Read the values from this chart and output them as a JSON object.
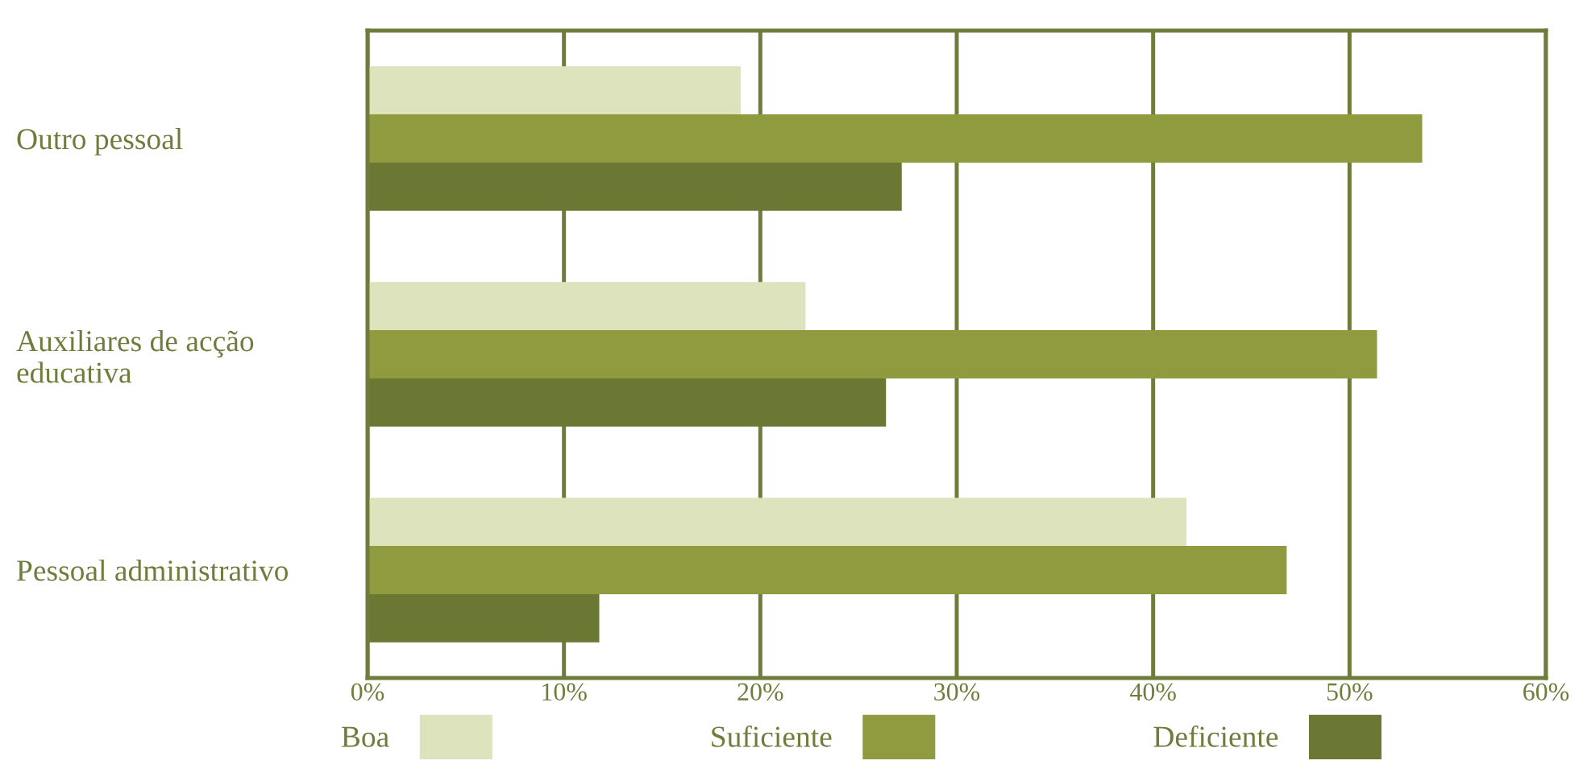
{
  "chart_data": {
    "type": "bar",
    "orientation": "horizontal",
    "categories": [
      "Outro pessoal",
      "Auxiliares de acção\neducativa",
      "Pessoal administrativo"
    ],
    "series": [
      {
        "name": "Boa",
        "color": "#dde3bc",
        "values": [
          19.0,
          22.3,
          41.7
        ]
      },
      {
        "name": "Suficiente",
        "color": "#8f9b3e",
        "values": [
          53.7,
          51.4,
          46.8
        ]
      },
      {
        "name": "Deficiente",
        "color": "#6b7834",
        "values": [
          27.2,
          26.4,
          11.8
        ]
      }
    ],
    "xlim": [
      0,
      60
    ],
    "xticks": [
      {
        "value": 0,
        "label": "0%"
      },
      {
        "value": 10,
        "label": "10%"
      },
      {
        "value": 20,
        "label": "20%"
      },
      {
        "value": 30,
        "label": "30%"
      },
      {
        "value": 40,
        "label": "40%"
      },
      {
        "value": 50,
        "label": "50%"
      },
      {
        "value": 60,
        "label": "60%"
      }
    ],
    "grid": "x",
    "legend": "bottom"
  }
}
